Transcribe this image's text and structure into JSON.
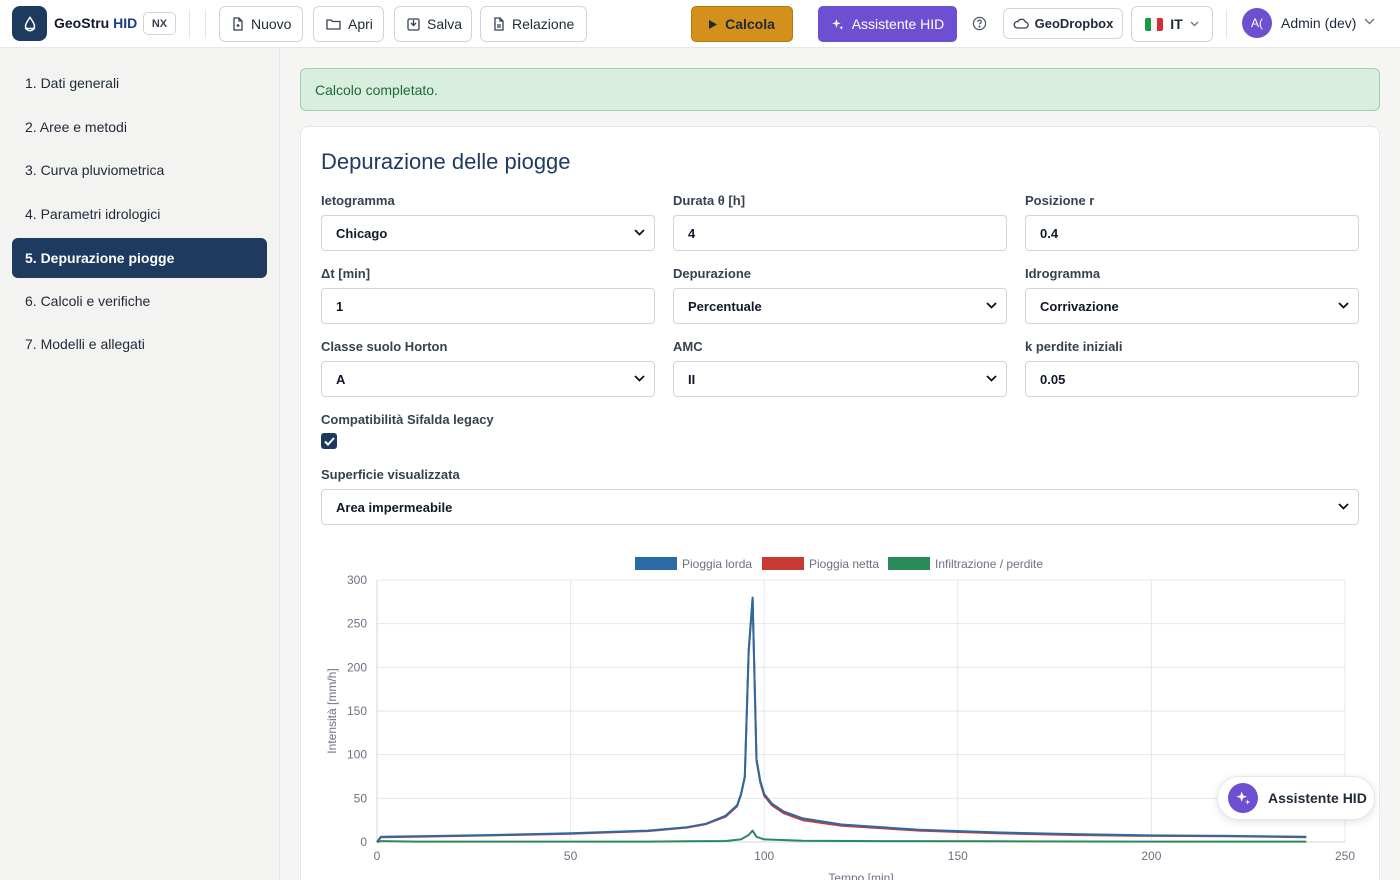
{
  "header": {
    "brand_main": "GeoStru",
    "brand_accent": "HID",
    "edition_badge": "NX",
    "toolbar": {
      "new_label": "Nuovo",
      "open_label": "Apri",
      "save_label": "Salva",
      "report_label": "Relazione",
      "calculate_label": "Calcola",
      "assistant_label": "Assistente HID",
      "dropbox_label": "GeoDropbox",
      "language_label": "IT"
    },
    "user": {
      "avatar_initials": "A(",
      "name": "Admin (dev)"
    }
  },
  "sidebar": {
    "items": [
      {
        "label": "1. Dati generali",
        "active": false
      },
      {
        "label": "2. Aree e metodi",
        "active": false
      },
      {
        "label": "3. Curva pluviometrica",
        "active": false
      },
      {
        "label": "4. Parametri idrologici",
        "active": false
      },
      {
        "label": "5. Depurazione piogge",
        "active": true
      },
      {
        "label": "6. Calcoli e verifiche",
        "active": false
      },
      {
        "label": "7. Modelli e allegati",
        "active": false
      }
    ]
  },
  "alert": {
    "message": "Calcolo completato."
  },
  "form": {
    "title": "Depurazione delle piogge",
    "ietogramma": {
      "label": "Ietogramma",
      "value": "Chicago"
    },
    "durata": {
      "label": "Durata θ [h]",
      "value": "4"
    },
    "posizione": {
      "label": "Posizione r",
      "value": "0.4"
    },
    "delta_t": {
      "label": "Δt [min]",
      "value": "1"
    },
    "depurazione": {
      "label": "Depurazione",
      "value": "Percentuale"
    },
    "idrogramma": {
      "label": "Idrogramma",
      "value": "Corrivazione"
    },
    "classe_suolo": {
      "label": "Classe suolo Horton",
      "value": "A"
    },
    "amc": {
      "label": "AMC",
      "value": "II"
    },
    "k_perdite": {
      "label": "k perdite iniziali",
      "value": "0.05"
    },
    "sifalda": {
      "label": "Compatibilità Sifalda legacy",
      "checked": true
    },
    "superficie": {
      "label": "Superficie visualizzata",
      "value": "Area impermeabile"
    }
  },
  "chart_data": {
    "type": "line",
    "title": "",
    "xlabel": "Tempo [min]",
    "ylabel": "Intensità [mm/h]",
    "xlim": [
      0,
      250
    ],
    "ylim": [
      0,
      300
    ],
    "xticks": [
      0,
      50,
      100,
      150,
      200,
      250
    ],
    "yticks": [
      0,
      50,
      100,
      150,
      200,
      250,
      300
    ],
    "grid": true,
    "legend_position": "top-center",
    "series": [
      {
        "name": "Pioggia lorda",
        "color": "#2a6aa6",
        "x": [
          0,
          1,
          10,
          30,
          50,
          70,
          80,
          85,
          90,
          93,
          94,
          95,
          96,
          97,
          98,
          99,
          100,
          102,
          105,
          110,
          120,
          140,
          160,
          180,
          200,
          220,
          240
        ],
        "y": [
          0,
          6,
          6.5,
          8,
          10,
          13,
          17,
          21,
          30,
          42,
          55,
          75,
          220,
          280,
          95,
          70,
          55,
          44,
          35,
          27,
          20,
          14,
          11,
          9,
          7.5,
          7,
          6
        ]
      },
      {
        "name": "Pioggia netta",
        "color": "#c93a33",
        "x": [
          0,
          1,
          10,
          30,
          50,
          70,
          80,
          85,
          90,
          93,
          94,
          95,
          96,
          97,
          98,
          99,
          100,
          102,
          105,
          110,
          120,
          140,
          160,
          180,
          200,
          220,
          240
        ],
        "y": [
          0,
          5.5,
          6,
          7.5,
          9.5,
          12.5,
          16.5,
          20.5,
          29,
          41,
          54,
          74,
          218,
          278,
          93,
          68,
          53,
          42,
          33,
          25,
          18.5,
          13,
          10,
          8,
          7,
          6.5,
          5.5
        ]
      },
      {
        "name": "Infiltrazione / perdite",
        "color": "#2a8a5a",
        "x": [
          0,
          1,
          10,
          30,
          50,
          70,
          80,
          90,
          94,
          96,
          97,
          98,
          100,
          110,
          130,
          160,
          200,
          240
        ],
        "y": [
          0,
          1,
          0.5,
          0.5,
          0.5,
          0.5,
          0.8,
          1.2,
          3,
          8,
          13,
          6,
          3,
          1.5,
          1,
          0.8,
          0.5,
          0.5
        ]
      }
    ]
  },
  "fab": {
    "label": "Assistente HID"
  },
  "colors": {
    "primary_dark": "#1e3a5f",
    "calculate": "#d4901c",
    "assistant": "#6f4fd1",
    "success_bg": "#d8eedf"
  }
}
